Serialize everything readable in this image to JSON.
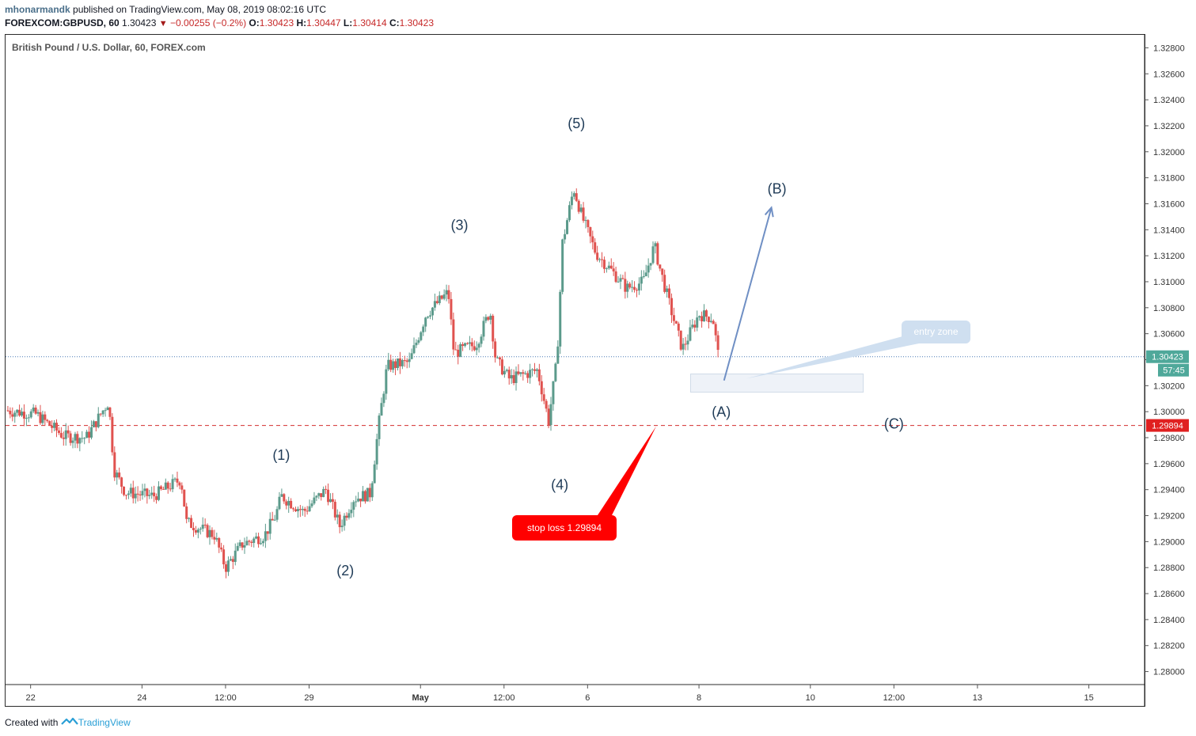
{
  "header": {
    "author": "mhonarmandk",
    "published_text": "published on TradingView.com, May 08, 2019 08:02:16 UTC",
    "symbol": "FOREXCOM:GBPUSD, 60",
    "last": "1.30423",
    "change": "−0.00255 (−0.2%)",
    "o_label": "O:",
    "o": "1.30423",
    "h_label": "H:",
    "h": "1.30447",
    "l_label": "L:",
    "l": "1.30414",
    "c_label": "C:",
    "c": "1.30423"
  },
  "pane_title": "British Pound / U.S. Dollar, 60, FOREX.com",
  "footer": {
    "created_with": "Created with",
    "brand": "TradingView"
  },
  "colors": {
    "up": "#5b9a8b",
    "down": "#e0524f",
    "wave_label": "#1f3b57",
    "stop": "#ff0000",
    "price_line": "#4a7ab5",
    "entry_zone": "#dde8f4"
  },
  "chart_data": {
    "type": "candlestick",
    "title": "British Pound / U.S. Dollar, 60, FOREX.com",
    "ylim": [
      1.279,
      1.329
    ],
    "y_ticks": [
      "1.28000",
      "1.28200",
      "1.28400",
      "1.28600",
      "1.28800",
      "1.29000",
      "1.29200",
      "1.29400",
      "1.29600",
      "1.29800",
      "1.30000",
      "1.30200",
      "1.30400",
      "1.30600",
      "1.30800",
      "1.31000",
      "1.31200",
      "1.31400",
      "1.31600",
      "1.31800",
      "1.32000",
      "1.32200",
      "1.32400",
      "1.32600",
      "1.32800"
    ],
    "x_ticks": [
      {
        "label": "22",
        "day": -0.5
      },
      {
        "label": "24",
        "day": 1.5
      },
      {
        "label": "12:00",
        "day": 3.0
      },
      {
        "label": "29",
        "day": 4.5
      },
      {
        "label": "May",
        "day": 6.5
      },
      {
        "label": "12:00",
        "day": 8.0
      },
      {
        "label": "6",
        "day": 9.5
      },
      {
        "label": "8",
        "day": 11.5
      },
      {
        "label": "10",
        "day": 13.5
      },
      {
        "label": "12:00",
        "day": 15.0
      },
      {
        "label": "13",
        "day": 16.5
      },
      {
        "label": "15",
        "day": 18.5
      }
    ],
    "x_range_days": [
      -0.95,
      19.5
    ],
    "last_price": 1.30423,
    "last_price_label": "1.30423",
    "countdown": "57:45",
    "stop_price": 1.29894,
    "stop_price_label": "1.29894",
    "wave_labels": [
      {
        "text": "(1)",
        "day": 4.0,
        "price": 1.2963
      },
      {
        "text": "(2)",
        "day": 5.15,
        "price": 1.2874
      },
      {
        "text": "(3)",
        "day": 7.2,
        "price": 1.314
      },
      {
        "text": "(4)",
        "day": 9.0,
        "price": 1.294
      },
      {
        "text": "(5)",
        "day": 9.3,
        "price": 1.3218
      },
      {
        "text": "(A)",
        "day": 11.9,
        "price": 1.2996
      },
      {
        "text": "(B)",
        "day": 12.9,
        "price": 1.3168
      },
      {
        "text": "(C)",
        "day": 15.0,
        "price": 1.2987
      }
    ],
    "annotations": {
      "entry_zone_label": "entry zone",
      "stop_loss_label": "stop loss 1.29894"
    },
    "entry_zone": {
      "from_day": 11.35,
      "to_day": 14.45,
      "low": 1.3015,
      "high": 1.3029
    },
    "arrow_b": {
      "from_day": 11.95,
      "from_price": 1.3024,
      "to_day": 12.8,
      "to_price": 1.3157
    },
    "path": [
      {
        "day": -0.95,
        "price": 1.3001
      },
      {
        "day": -0.4,
        "price": 1.2998
      },
      {
        "day": 0.1,
        "price": 1.2981
      },
      {
        "day": 0.5,
        "price": 1.298
      },
      {
        "day": 0.9,
        "price": 1.3008
      },
      {
        "day": 1.0,
        "price": 1.2955
      },
      {
        "day": 1.2,
        "price": 1.2938
      },
      {
        "day": 1.7,
        "price": 1.2935
      },
      {
        "day": 2.2,
        "price": 1.2948
      },
      {
        "day": 2.3,
        "price": 1.2915
      },
      {
        "day": 2.8,
        "price": 1.2905
      },
      {
        "day": 3.0,
        "price": 1.288
      },
      {
        "day": 3.3,
        "price": 1.2898
      },
      {
        "day": 3.7,
        "price": 1.2905
      },
      {
        "day": 3.9,
        "price": 1.292
      },
      {
        "day": 4.0,
        "price": 1.2935
      },
      {
        "day": 4.4,
        "price": 1.2923
      },
      {
        "day": 4.8,
        "price": 1.294
      },
      {
        "day": 5.05,
        "price": 1.2912
      },
      {
        "day": 5.3,
        "price": 1.2933
      },
      {
        "day": 5.6,
        "price": 1.2937
      },
      {
        "day": 5.75,
        "price": 1.299
      },
      {
        "day": 5.9,
        "price": 1.3035
      },
      {
        "day": 6.3,
        "price": 1.3038
      },
      {
        "day": 6.6,
        "price": 1.3075
      },
      {
        "day": 7.0,
        "price": 1.3092
      },
      {
        "day": 7.1,
        "price": 1.3045
      },
      {
        "day": 7.5,
        "price": 1.3052
      },
      {
        "day": 7.75,
        "price": 1.3078
      },
      {
        "day": 7.85,
        "price": 1.304
      },
      {
        "day": 8.1,
        "price": 1.3025
      },
      {
        "day": 8.6,
        "price": 1.3032
      },
      {
        "day": 8.8,
        "price": 1.2993
      },
      {
        "day": 8.95,
        "price": 1.304
      },
      {
        "day": 9.05,
        "price": 1.313
      },
      {
        "day": 9.25,
        "price": 1.3172
      },
      {
        "day": 9.4,
        "price": 1.315
      },
      {
        "day": 9.65,
        "price": 1.3122
      },
      {
        "day": 9.9,
        "price": 1.311
      },
      {
        "day": 10.2,
        "price": 1.3095
      },
      {
        "day": 10.5,
        "price": 1.31
      },
      {
        "day": 10.7,
        "price": 1.3128
      },
      {
        "day": 10.8,
        "price": 1.311
      },
      {
        "day": 11.0,
        "price": 1.3078
      },
      {
        "day": 11.2,
        "price": 1.3048
      },
      {
        "day": 11.5,
        "price": 1.3075
      },
      {
        "day": 11.75,
        "price": 1.3072
      },
      {
        "day": 11.85,
        "price": 1.3042
      }
    ]
  }
}
